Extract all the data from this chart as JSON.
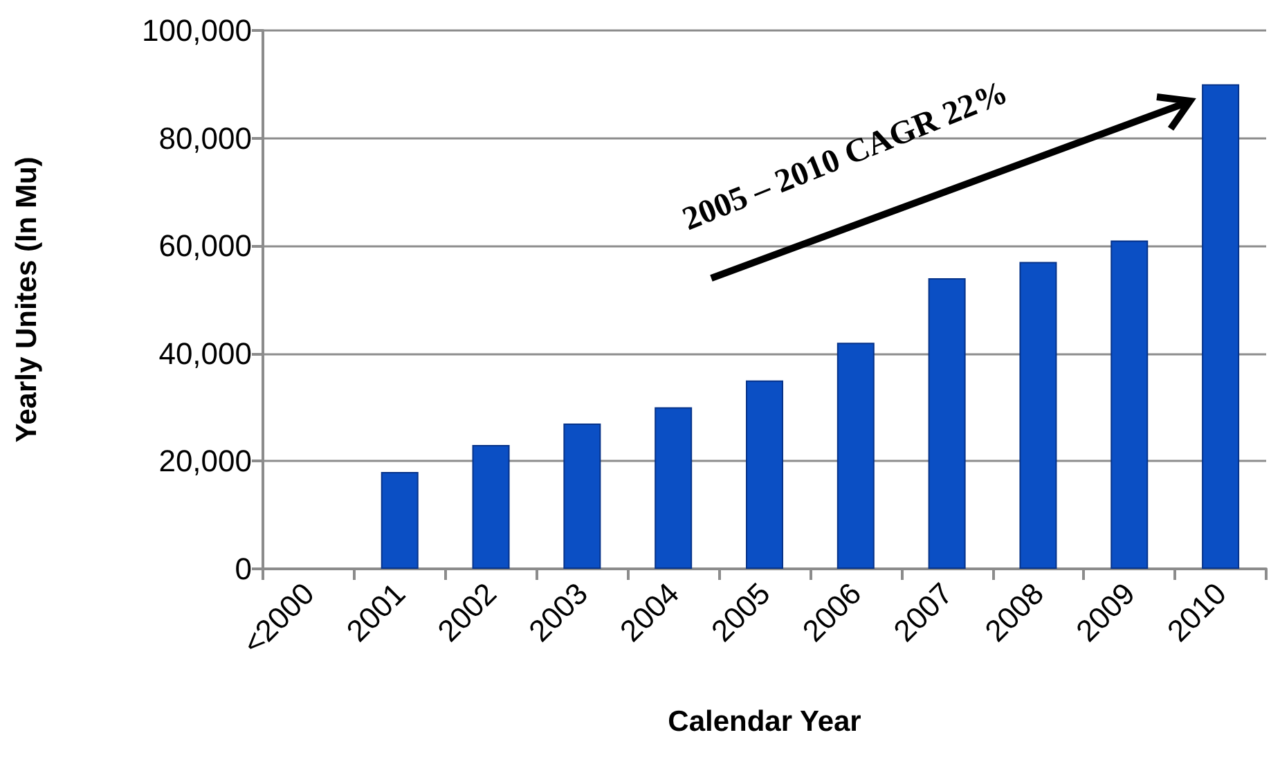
{
  "chart_data": {
    "type": "bar",
    "xlabel": "Calendar Year",
    "ylabel": "Yearly Unites (In Mu)",
    "categories": [
      "<2000",
      "2001",
      "2002",
      "2003",
      "2004",
      "2005",
      "2006",
      "2007",
      "2008",
      "2009",
      "2010"
    ],
    "values": [
      null,
      18000,
      23000,
      27000,
      30000,
      35000,
      42000,
      54000,
      57000,
      61000,
      90000
    ],
    "color": "#0b4fc4",
    "ylim": [
      0,
      100000
    ],
    "yticks": [
      {
        "value": 0,
        "label": "0"
      },
      {
        "value": 20000,
        "label": "20,000"
      },
      {
        "value": 40000,
        "label": "40,000"
      },
      {
        "value": 60000,
        "label": "60,000"
      },
      {
        "value": 80000,
        "label": "80,000"
      },
      {
        "value": 100000,
        "label": "100,000"
      }
    ],
    "grid": "y",
    "annotations": [
      "2005 – 2010 CAGR 22%"
    ]
  }
}
